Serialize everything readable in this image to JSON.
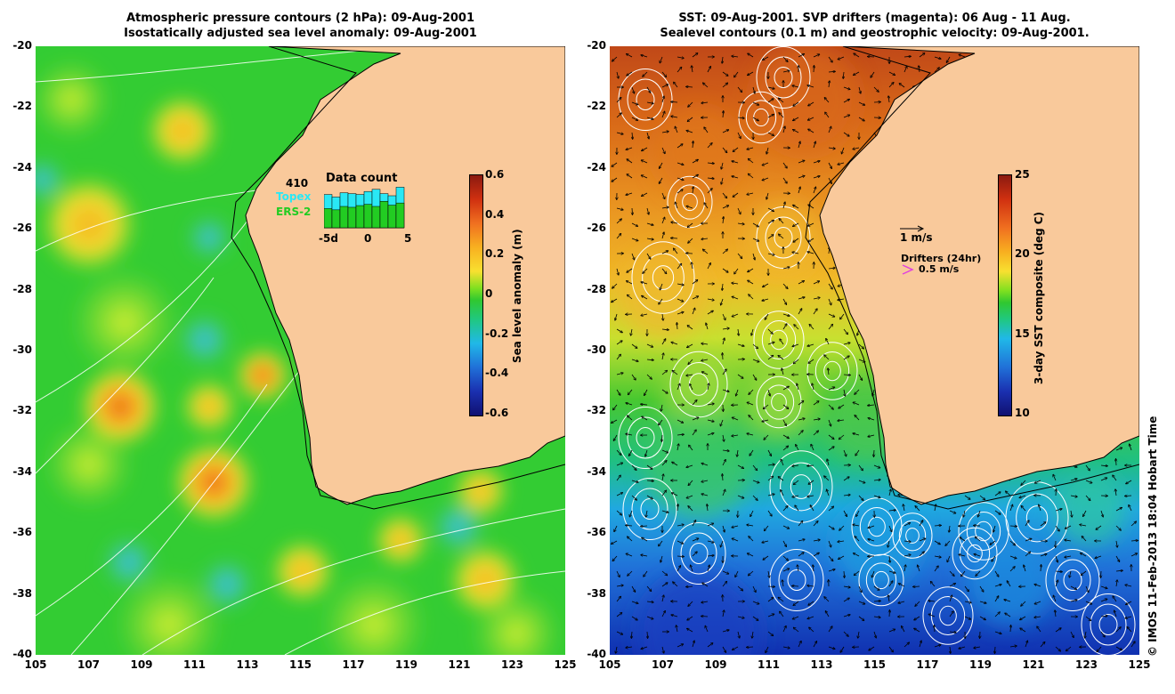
{
  "left_panel": {
    "title_line1": "Atmospheric pressure contours (2 hPa): 09-Aug-2001",
    "title_line2": "Isostatically adjusted sea level anomaly: 09-Aug-2001",
    "y_ticks": [
      "-20",
      "-22",
      "-24",
      "-26",
      "-28",
      "-30",
      "-32",
      "-34",
      "-36",
      "-38",
      "-40"
    ],
    "x_ticks": [
      "105",
      "107",
      "109",
      "111",
      "113",
      "115",
      "117",
      "119",
      "121",
      "123",
      "125"
    ],
    "colorbar": {
      "title": "Sea level anomaly (m)",
      "ticks": [
        "0.6",
        "0.4",
        "0.2",
        "0",
        "-0.2",
        "-0.4",
        "-0.6"
      ]
    },
    "data_count": {
      "title": "Data count",
      "max_label": "410",
      "series1": "Topex",
      "series2": "ERS-2",
      "x_labels": [
        "-5d",
        "0",
        "5"
      ],
      "topex_color": "#29e8f5",
      "ers_color": "#22cc22",
      "bar_fractions_ers": [
        0.45,
        0.42,
        0.5,
        0.48,
        0.52,
        0.55,
        0.5,
        0.62,
        0.53,
        0.58
      ],
      "bar_fractions_total": [
        0.78,
        0.72,
        0.82,
        0.8,
        0.78,
        0.85,
        0.9,
        0.8,
        0.75,
        0.95
      ]
    }
  },
  "right_panel": {
    "title_line1": "SST: 09-Aug-2001. SVP drifters (magenta): 06 Aug - 11 Aug.",
    "title_line2": "Sealevel contours (0.1 m) and geostrophic velocity: 09-Aug-2001.",
    "y_ticks": [
      "-20",
      "-22",
      "-24",
      "-26",
      "-28",
      "-30",
      "-32",
      "-34",
      "-36",
      "-38",
      "-40"
    ],
    "x_ticks": [
      "105",
      "107",
      "109",
      "111",
      "113",
      "115",
      "117",
      "119",
      "121",
      "123",
      "125"
    ],
    "colorbar": {
      "title": "3-day SST composite (deg C)",
      "ticks": [
        "25",
        "20",
        "15",
        "10"
      ]
    },
    "velocity_scale_label": "1 m/s",
    "drifters_label": "Drifters (24hr)",
    "drifters_speed_label": "0.5 m/s",
    "drifter_color": "#e040e0"
  },
  "credit": "© IMOS 11-Feb-2013 18:04 Hobart Time",
  "land_color": "#f9c99b"
}
